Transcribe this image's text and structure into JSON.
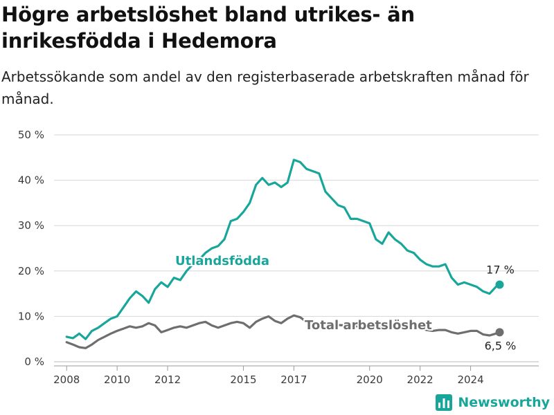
{
  "title": "Högre arbetslöshet bland utrikes- än inrikesfödda i Hedemora",
  "subtitle": "Arbetssökande som andel av den registerbaserade arbetskraften månad för månad.",
  "brand": "Newsworthy",
  "colors": {
    "foreign": "#19a69a",
    "total": "#6e6e6e",
    "brand": "#19a69a"
  },
  "chart_data": {
    "type": "line",
    "xlim": [
      2007.5,
      2026.7
    ],
    "ylim": [
      0,
      50
    ],
    "y_ticks": [
      {
        "value": 0,
        "label": "0 %"
      },
      {
        "value": 10,
        "label": "10 %"
      },
      {
        "value": 20,
        "label": "20 %"
      },
      {
        "value": 30,
        "label": "30 %"
      },
      {
        "value": 40,
        "label": "40 %"
      },
      {
        "value": 50,
        "label": "50 %"
      }
    ],
    "x_ticks": [
      {
        "value": 2008,
        "label": "2008"
      },
      {
        "value": 2010,
        "label": "2010"
      },
      {
        "value": 2012,
        "label": "2012"
      },
      {
        "value": 2015,
        "label": "2015"
      },
      {
        "value": 2017,
        "label": "2017"
      },
      {
        "value": 2020,
        "label": "2020"
      },
      {
        "value": 2022,
        "label": "2022"
      },
      {
        "value": 2024,
        "label": "2024"
      }
    ],
    "grid": true,
    "series": [
      {
        "name": "Utlandsfödda",
        "key": "foreign",
        "end_label": "17 %",
        "points": [
          [
            2008.0,
            5.5
          ],
          [
            2008.25,
            5.2
          ],
          [
            2008.5,
            6.2
          ],
          [
            2008.75,
            5.0
          ],
          [
            2009.0,
            6.8
          ],
          [
            2009.25,
            7.5
          ],
          [
            2009.5,
            8.5
          ],
          [
            2009.75,
            9.5
          ],
          [
            2010.0,
            10.0
          ],
          [
            2010.25,
            12.0
          ],
          [
            2010.5,
            14.0
          ],
          [
            2010.75,
            15.5
          ],
          [
            2011.0,
            14.5
          ],
          [
            2011.25,
            13.0
          ],
          [
            2011.5,
            16.0
          ],
          [
            2011.75,
            17.5
          ],
          [
            2012.0,
            16.5
          ],
          [
            2012.25,
            18.5
          ],
          [
            2012.5,
            18.0
          ],
          [
            2012.75,
            20.0
          ],
          [
            2013.0,
            21.5
          ],
          [
            2013.25,
            22.5
          ],
          [
            2013.5,
            24.0
          ],
          [
            2013.75,
            25.0
          ],
          [
            2014.0,
            25.5
          ],
          [
            2014.25,
            27.0
          ],
          [
            2014.5,
            31.0
          ],
          [
            2014.75,
            31.5
          ],
          [
            2015.0,
            33.0
          ],
          [
            2015.25,
            35.0
          ],
          [
            2015.5,
            39.0
          ],
          [
            2015.75,
            40.5
          ],
          [
            2016.0,
            39.0
          ],
          [
            2016.25,
            39.5
          ],
          [
            2016.5,
            38.5
          ],
          [
            2016.75,
            39.5
          ],
          [
            2017.0,
            44.5
          ],
          [
            2017.25,
            44.0
          ],
          [
            2017.5,
            42.5
          ],
          [
            2017.75,
            42.0
          ],
          [
            2018.0,
            41.5
          ],
          [
            2018.25,
            37.5
          ],
          [
            2018.5,
            36.0
          ],
          [
            2018.75,
            34.5
          ],
          [
            2019.0,
            34.0
          ],
          [
            2019.25,
            31.5
          ],
          [
            2019.5,
            31.5
          ],
          [
            2019.75,
            31.0
          ],
          [
            2020.0,
            30.5
          ],
          [
            2020.25,
            27.0
          ],
          [
            2020.5,
            26.0
          ],
          [
            2020.75,
            28.5
          ],
          [
            2021.0,
            27.0
          ],
          [
            2021.25,
            26.0
          ],
          [
            2021.5,
            24.5
          ],
          [
            2021.75,
            24.0
          ],
          [
            2022.0,
            22.5
          ],
          [
            2022.25,
            21.5
          ],
          [
            2022.5,
            21.0
          ],
          [
            2022.75,
            21.0
          ],
          [
            2023.0,
            21.5
          ],
          [
            2023.25,
            18.5
          ],
          [
            2023.5,
            17.0
          ],
          [
            2023.75,
            17.5
          ],
          [
            2024.0,
            17.0
          ],
          [
            2024.25,
            16.5
          ],
          [
            2024.5,
            15.5
          ],
          [
            2024.75,
            15.0
          ],
          [
            2025.0,
            16.5
          ],
          [
            2025.15,
            17.0
          ]
        ]
      },
      {
        "name": "Total arbetslöshet",
        "key": "total",
        "end_label": "6,5 %",
        "points": [
          [
            2008.0,
            4.3
          ],
          [
            2008.25,
            3.8
          ],
          [
            2008.5,
            3.2
          ],
          [
            2008.75,
            3.0
          ],
          [
            2009.0,
            3.8
          ],
          [
            2009.25,
            4.8
          ],
          [
            2009.5,
            5.5
          ],
          [
            2009.75,
            6.2
          ],
          [
            2010.0,
            6.8
          ],
          [
            2010.25,
            7.3
          ],
          [
            2010.5,
            7.8
          ],
          [
            2010.75,
            7.5
          ],
          [
            2011.0,
            7.8
          ],
          [
            2011.25,
            8.5
          ],
          [
            2011.5,
            8.0
          ],
          [
            2011.75,
            6.5
          ],
          [
            2012.0,
            7.0
          ],
          [
            2012.25,
            7.5
          ],
          [
            2012.5,
            7.8
          ],
          [
            2012.75,
            7.5
          ],
          [
            2013.0,
            8.0
          ],
          [
            2013.25,
            8.5
          ],
          [
            2013.5,
            8.8
          ],
          [
            2013.75,
            8.0
          ],
          [
            2014.0,
            7.5
          ],
          [
            2014.25,
            8.0
          ],
          [
            2014.5,
            8.5
          ],
          [
            2014.75,
            8.8
          ],
          [
            2015.0,
            8.5
          ],
          [
            2015.25,
            7.5
          ],
          [
            2015.5,
            8.8
          ],
          [
            2015.75,
            9.5
          ],
          [
            2016.0,
            10.0
          ],
          [
            2016.25,
            9.0
          ],
          [
            2016.5,
            8.5
          ],
          [
            2016.75,
            9.5
          ],
          [
            2017.0,
            10.2
          ],
          [
            2017.25,
            9.8
          ],
          [
            2017.5,
            8.8
          ],
          [
            2017.75,
            8.5
          ],
          [
            2018.0,
            8.5
          ],
          [
            2018.5,
            8.2
          ],
          [
            2019.0,
            8.0
          ],
          [
            2019.5,
            7.8
          ],
          [
            2020.0,
            8.0
          ],
          [
            2020.5,
            7.6
          ],
          [
            2021.0,
            7.5
          ],
          [
            2021.5,
            7.3
          ],
          [
            2022.0,
            7.5
          ],
          [
            2022.25,
            7.0
          ],
          [
            2022.5,
            6.8
          ],
          [
            2022.75,
            7.0
          ],
          [
            2023.0,
            7.0
          ],
          [
            2023.25,
            6.5
          ],
          [
            2023.5,
            6.2
          ],
          [
            2023.75,
            6.5
          ],
          [
            2024.0,
            6.8
          ],
          [
            2024.25,
            6.8
          ],
          [
            2024.5,
            6.0
          ],
          [
            2024.75,
            5.8
          ],
          [
            2025.0,
            6.2
          ],
          [
            2025.15,
            6.5
          ]
        ]
      }
    ]
  }
}
